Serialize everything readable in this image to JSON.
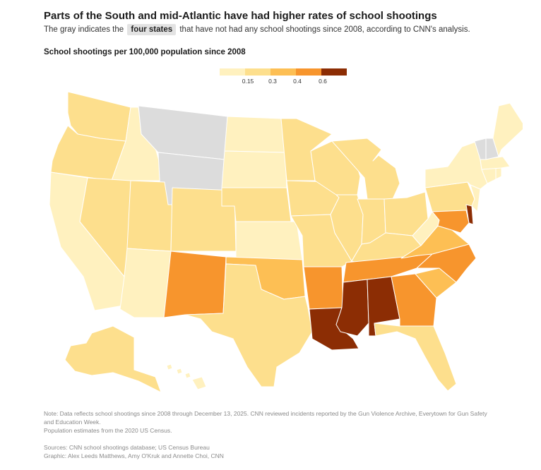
{
  "header": {
    "title": "Parts of the South and mid-Atlantic have had higher rates of school shootings",
    "subtitle_before": "The gray indicates the",
    "subtitle_highlight": "four states",
    "subtitle_after": "that have not had any school shootings since 2008, according to CNN's analysis."
  },
  "legend": {
    "title": "School shootings per 100,000 population since 2008",
    "colors": [
      "#fff1bf",
      "#fddf8d",
      "#fdbf54",
      "#f7952d",
      "#8c2d04"
    ],
    "ticks": [
      "0.15",
      "0.3",
      "0.4",
      "0.6"
    ],
    "no_data_color": "#dcdcdc"
  },
  "map_data": {
    "no_shootings_states": [
      "MT",
      "WY",
      "NH",
      "VT"
    ],
    "state_bins": {
      "WA": 1,
      "OR": 1,
      "CA": 0,
      "ID": 0,
      "NV": 1,
      "UT": 1,
      "AZ": 0,
      "CO": 1,
      "NM": 3,
      "ND": 0,
      "SD": 0,
      "NE": 1,
      "KS": 0,
      "OK": 2,
      "TX": 1,
      "MN": 1,
      "IA": 1,
      "MO": 1,
      "AR": 3,
      "LA": 4,
      "WI": 1,
      "IL": 1,
      "MI": 1,
      "IN": 1,
      "OH": 1,
      "KY": 1,
      "TN": 3,
      "MS": 4,
      "AL": 4,
      "GA": 3,
      "FL": 1,
      "SC": 2,
      "NC": 3,
      "VA": 2,
      "WV": 0,
      "PA": 1,
      "NY": 0,
      "ME": 0,
      "MA": 0,
      "CT": 0,
      "RI": 0,
      "NJ": 0,
      "DE": 4,
      "MD": 3,
      "AK": 1,
      "HI": 0
    }
  },
  "footer": {
    "note_line1": "Note: Data reflects school shootings since 2008 through December 13, 2025. CNN reviewed incidents reported by the Gun Violence Archive, Everytown for Gun Safety",
    "note_line2": "and Education Week.",
    "note_line3": "Population estimates from the 2020 US Census.",
    "sources": "Sources: CNN school shootings database; US Census Bureau",
    "graphic": "Graphic: Alex Leeds Matthews, Amy O'Kruk and Annette Choi, CNN"
  }
}
